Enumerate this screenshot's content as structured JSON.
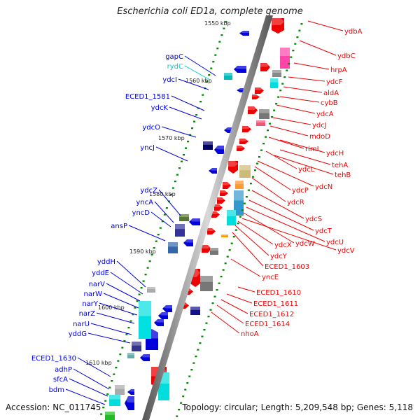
{
  "title": "Escherichia coli ED1a, complete genome",
  "footer": {
    "accession_label": "Accession:",
    "accession": "NC_011745",
    "topology_label": "Topology:",
    "topology": "circular",
    "length_label": "Length:",
    "length": "5,209,548 bp",
    "genes_label": "Genes:",
    "genes": "5,118"
  },
  "colors": {
    "forward_strand": "#ee0000",
    "reverse_strand": "#0000dd",
    "rna": "#00cccc",
    "backbone": "#888888",
    "tick": "#008800"
  },
  "scale_labels": [
    "1550 kbp",
    "1560 kbp",
    "1570 kbp",
    "1580 kbp",
    "1590 kbp",
    "1600 kbp",
    "1610 kbp"
  ],
  "genes_left": [
    "gapC",
    "rydC",
    "ydcI",
    "ECED1_1581",
    "ydcK",
    "ydcO",
    "yncJ",
    "ydcZ",
    "yncA",
    "yncD",
    "ansP",
    "yddH",
    "yddE",
    "narV",
    "narW",
    "narY",
    "narZ",
    "narU",
    "yddG",
    "ECED1_1630",
    "adhP",
    "sfcA",
    "bdm"
  ],
  "genes_right": [
    "ydbA",
    "ydbC",
    "hrpA",
    "ydcF",
    "aldA",
    "cybB",
    "ydcA",
    "ydcJ",
    "mdoD",
    "rimL",
    "ydcH",
    "tehA",
    "ydcL",
    "tehB",
    "ydcN",
    "ydcP",
    "ydcR",
    "ydcS",
    "ydcT",
    "ydcU",
    "ydcW",
    "ydcV",
    "ydcX",
    "ydcY",
    "ECED1_1603",
    "yncE",
    "ECED1_1610",
    "ECED1_1611",
    "ECED1_1612",
    "ECED1_1614",
    "nhoA"
  ]
}
